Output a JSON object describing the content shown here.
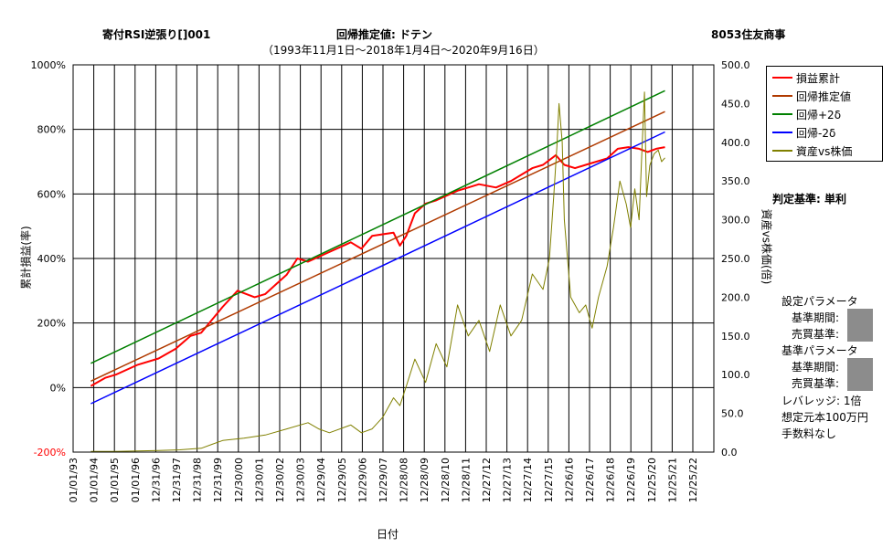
{
  "header": {
    "strategy": "寄付RSI逆張り[]001",
    "method": "回帰推定値: ドテン",
    "period": "（1993年11月1日～2018年1月4日～2020年9月16日）",
    "stock": "8053住友商事"
  },
  "side_panel": {
    "criterion": "判定基準: 単利",
    "setting_params": "設定パラメータ",
    "base_period_1": "基準期間:",
    "trade_criterion_1": "売買基準:",
    "base_params": "基準パラメータ",
    "base_period_2": "基準期間:",
    "trade_criterion_2": "売買基準:",
    "leverage": "レバレッジ: 1倍",
    "capital": "想定元本100万円",
    "fee": "手数料なし"
  },
  "chart_data": {
    "type": "line",
    "xlabel": "日付",
    "ylabel_left": "累計損益(率)",
    "ylabel_right": "資産vs株価(倍)",
    "y_left_ticks": [
      "1000%",
      "800%",
      "600%",
      "400%",
      "200%",
      "0%",
      "-200%"
    ],
    "y_left_range": [
      -200,
      1000
    ],
    "y_right_ticks": [
      "500.0",
      "450.0",
      "400.0",
      "350.0",
      "300.0",
      "250.0",
      "200.0",
      "150.0",
      "100.0",
      "50.0",
      "0.0"
    ],
    "y_right_range": [
      0,
      500
    ],
    "x_ticks": [
      "01/01/93",
      "01/01/94",
      "01/01/95",
      "01/01/96",
      "12/31/96",
      "12/31/97",
      "12/31/98",
      "12/31/99",
      "12/30/00",
      "12/30/01",
      "12/30/02",
      "12/30/03",
      "12/29/04",
      "12/29/05",
      "12/29/06",
      "12/29/07",
      "12/28/08",
      "12/28/09",
      "12/28/10",
      "12/28/11",
      "12/27/12",
      "12/27/13",
      "12/27/14",
      "12/27/15",
      "12/26/16",
      "12/26/17",
      "12/26/18",
      "12/26/19",
      "12/25/20",
      "12/25/21",
      "12/25/22"
    ],
    "x_range": [
      1993.0,
      2023.0
    ],
    "legend_position": "top-right",
    "grid": true,
    "series": [
      {
        "name": "損益累計",
        "axis": "left",
        "color": "#ff0000",
        "x": [
          1993.83,
          1994.5,
          1995.0,
          1996.0,
          1997.0,
          1997.8,
          1998.5,
          1999.0,
          1999.5,
          2000.0,
          2000.7,
          2001.5,
          2002.0,
          2002.5,
          2003.0,
          2003.5,
          2004.0,
          2005.0,
          2006.0,
          2006.5,
          2007.0,
          2008.0,
          2008.3,
          2008.6,
          2009.0,
          2009.5,
          2010.0,
          2011.0,
          2011.5,
          2012.0,
          2012.8,
          2013.5,
          2014.0,
          2014.5,
          2015.0,
          2015.6,
          2016.0,
          2016.5,
          2017.0,
          2017.5,
          2018.0,
          2018.5,
          2019.0,
          2019.5,
          2019.9,
          2020.3,
          2020.71
        ],
        "values": [
          5,
          30,
          40,
          70,
          90,
          120,
          160,
          170,
          210,
          250,
          300,
          280,
          290,
          320,
          350,
          400,
          390,
          420,
          450,
          430,
          470,
          480,
          440,
          470,
          540,
          570,
          580,
          610,
          620,
          630,
          620,
          640,
          660,
          680,
          690,
          720,
          690,
          680,
          690,
          700,
          710,
          740,
          745,
          740,
          730,
          740,
          745
        ]
      },
      {
        "name": "回帰推定値",
        "axis": "left",
        "color": "#b03a00",
        "x": [
          1993.83,
          2020.71
        ],
        "values": [
          20,
          855
        ]
      },
      {
        "name": "回帰+2δ",
        "axis": "left",
        "color": "#008000",
        "x": [
          1993.83,
          2020.71
        ],
        "values": [
          75,
          920
        ]
      },
      {
        "name": "回帰-2δ",
        "axis": "left",
        "color": "#0000ff",
        "x": [
          1993.83,
          2020.71
        ],
        "values": [
          -50,
          792
        ]
      },
      {
        "name": "資産vs株価",
        "axis": "right",
        "color": "#808000",
        "x": [
          1993.83,
          1995.0,
          1997.0,
          1998.0,
          1999.0,
          1999.5,
          2000.0,
          2001.0,
          2002.0,
          2003.0,
          2004.0,
          2004.5,
          2005.0,
          2006.0,
          2006.5,
          2007.0,
          2007.5,
          2008.0,
          2008.3,
          2008.6,
          2009.0,
          2009.5,
          2010.0,
          2010.5,
          2011.0,
          2011.5,
          2012.0,
          2012.5,
          2013.0,
          2013.5,
          2014.0,
          2014.5,
          2015.0,
          2015.3,
          2015.5,
          2015.65,
          2015.75,
          2015.9,
          2016.0,
          2016.3,
          2016.7,
          2017.0,
          2017.3,
          2017.6,
          2018.0,
          2018.3,
          2018.6,
          2018.9,
          2019.1,
          2019.3,
          2019.5,
          2019.65,
          2019.75,
          2019.85,
          2020.0,
          2020.2,
          2020.4,
          2020.55,
          2020.71
        ],
        "values": [
          1,
          1,
          2,
          3,
          5,
          10,
          15,
          18,
          22,
          30,
          38,
          30,
          25,
          35,
          25,
          30,
          45,
          70,
          60,
          85,
          120,
          90,
          140,
          110,
          190,
          150,
          170,
          130,
          190,
          150,
          170,
          230,
          210,
          250,
          330,
          395,
          450,
          400,
          300,
          200,
          180,
          190,
          160,
          200,
          240,
          290,
          350,
          320,
          290,
          340,
          300,
          400,
          465,
          330,
          370,
          385,
          390,
          375,
          380
        ]
      }
    ]
  }
}
